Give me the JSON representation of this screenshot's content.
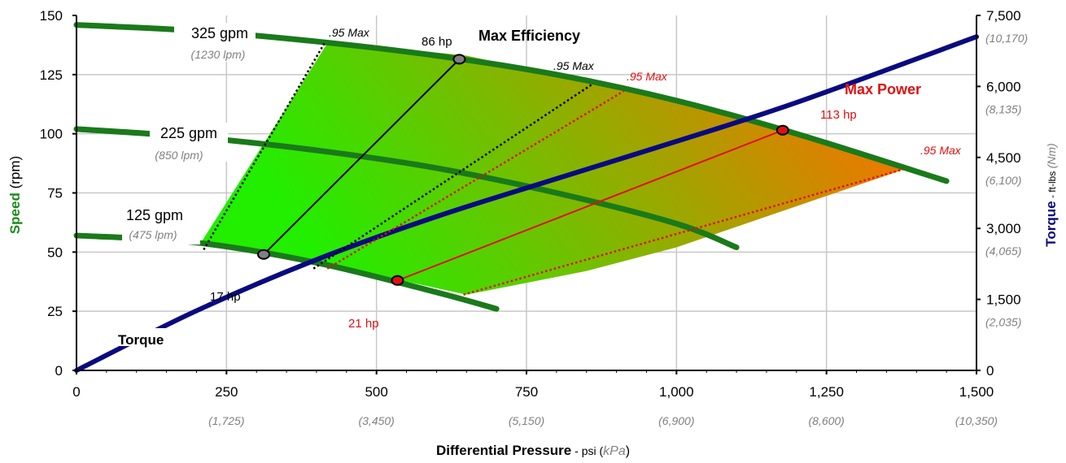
{
  "chart_data": {
    "type": "line",
    "x_axis": {
      "label_bold": "Differential Pressure",
      "label_sep": " - psi (",
      "label_unit": "kPa",
      "label_close": ")",
      "ticks": [
        "0",
        "250",
        "500",
        "750",
        "1,000",
        "1,250",
        "1,500"
      ],
      "tick_values": [
        0,
        250,
        500,
        750,
        1000,
        1250,
        1500
      ],
      "secondary_ticks": [
        "",
        "(1,725)",
        "(3,450)",
        "(5,150)",
        "(6,900)",
        "(8,600)",
        "(10,350)"
      ],
      "range": [
        0,
        1500
      ]
    },
    "y_axis_left": {
      "label_bold": "Speed",
      "label_rest": " (rpm)",
      "ticks": [
        "0",
        "25",
        "50",
        "75",
        "100",
        "125",
        "150"
      ],
      "tick_values": [
        0,
        25,
        50,
        75,
        100,
        125,
        150
      ],
      "range": [
        0,
        150
      ]
    },
    "y_axis_right": {
      "label_bold": "Torque",
      "label_mid": " - ft-lbs ",
      "label_unit": "(Nm)",
      "ticks": [
        "0",
        "1,500",
        "3,000",
        "4,500",
        "6,000",
        "7,500"
      ],
      "tick_values": [
        0,
        1500,
        3000,
        4500,
        6000,
        7500
      ],
      "secondary_ticks": [
        "",
        "(2,035)",
        "(4,065)",
        "(6,100)",
        "(8,135)",
        "(10,170)"
      ],
      "range": [
        0,
        7500
      ]
    },
    "grid": true,
    "colors": {
      "flow": "#1a7a1a",
      "torque": "#0a0a80",
      "max_efficiency": "#000000",
      "max_power": "#e01010",
      "region_low": "#22ee00",
      "region_high": "#ee7700",
      "axis_green": "#1a8a1a",
      "axis_blue": "#0a0a80",
      "secondary_gray": "#808080"
    },
    "flow_curves": [
      {
        "label": "325 gpm",
        "sub": "(1230 lpm)",
        "x": [
          0,
          200,
          400,
          600,
          800,
          1000,
          1200,
          1450
        ],
        "y": [
          146,
          143.5,
          139,
          133,
          125,
          114,
          100,
          80
        ]
      },
      {
        "label": "225 gpm",
        "sub": "(850 lpm)",
        "x": [
          0,
          200,
          400,
          600,
          800,
          1000,
          1100
        ],
        "y": [
          102,
          98.5,
          93,
          85.5,
          75,
          62,
          52
        ]
      },
      {
        "label": "125 gpm",
        "sub": "(475 lpm)",
        "x": [
          0,
          200,
          400,
          600,
          700
        ],
        "y": [
          57,
          54,
          45.5,
          33,
          26
        ]
      }
    ],
    "torque_curve": {
      "label": "Torque",
      "x": [
        0,
        200,
        400,
        600,
        800,
        1000,
        1200,
        1500
      ],
      "y": [
        0,
        1260,
        2340,
        3250,
        4050,
        4840,
        5660,
        7050
      ]
    },
    "operating_region": {
      "x": [
        205,
        420,
        650,
        1000,
        1200,
        1380,
        1000,
        850,
        650,
        415
      ],
      "y": [
        53,
        139,
        133,
        114,
        100,
        85,
        52,
        42,
        32,
        45
      ]
    },
    "max_efficiency": {
      "label": "Max Efficiency",
      "top": {
        "x": 638,
        "y": 131.5,
        "hp": "86 hp"
      },
      "bottom": {
        "x": 312,
        "y": 49,
        "hp": "17 hp"
      },
      "bounds": [
        {
          "x1": 212,
          "y1": 51,
          "x2": 415,
          "y2": 139,
          "label": ".95 Max"
        },
        {
          "x1": 395,
          "y1": 43,
          "x2": 860,
          "y2": 121,
          "label": ".95 Max"
        }
      ]
    },
    "max_power": {
      "label": "Max Power",
      "top": {
        "x": 1177,
        "y": 101.5,
        "hp": "113 hp"
      },
      "bottom": {
        "x": 535,
        "y": 38,
        "hp": "21 hp"
      },
      "bounds": [
        {
          "x1": 418,
          "y1": 43,
          "x2": 912,
          "y2": 118,
          "label": ".95 Max"
        },
        {
          "x1": 645,
          "y1": 32,
          "x2": 1378,
          "y2": 85,
          "label": ".95 Max"
        }
      ]
    }
  }
}
